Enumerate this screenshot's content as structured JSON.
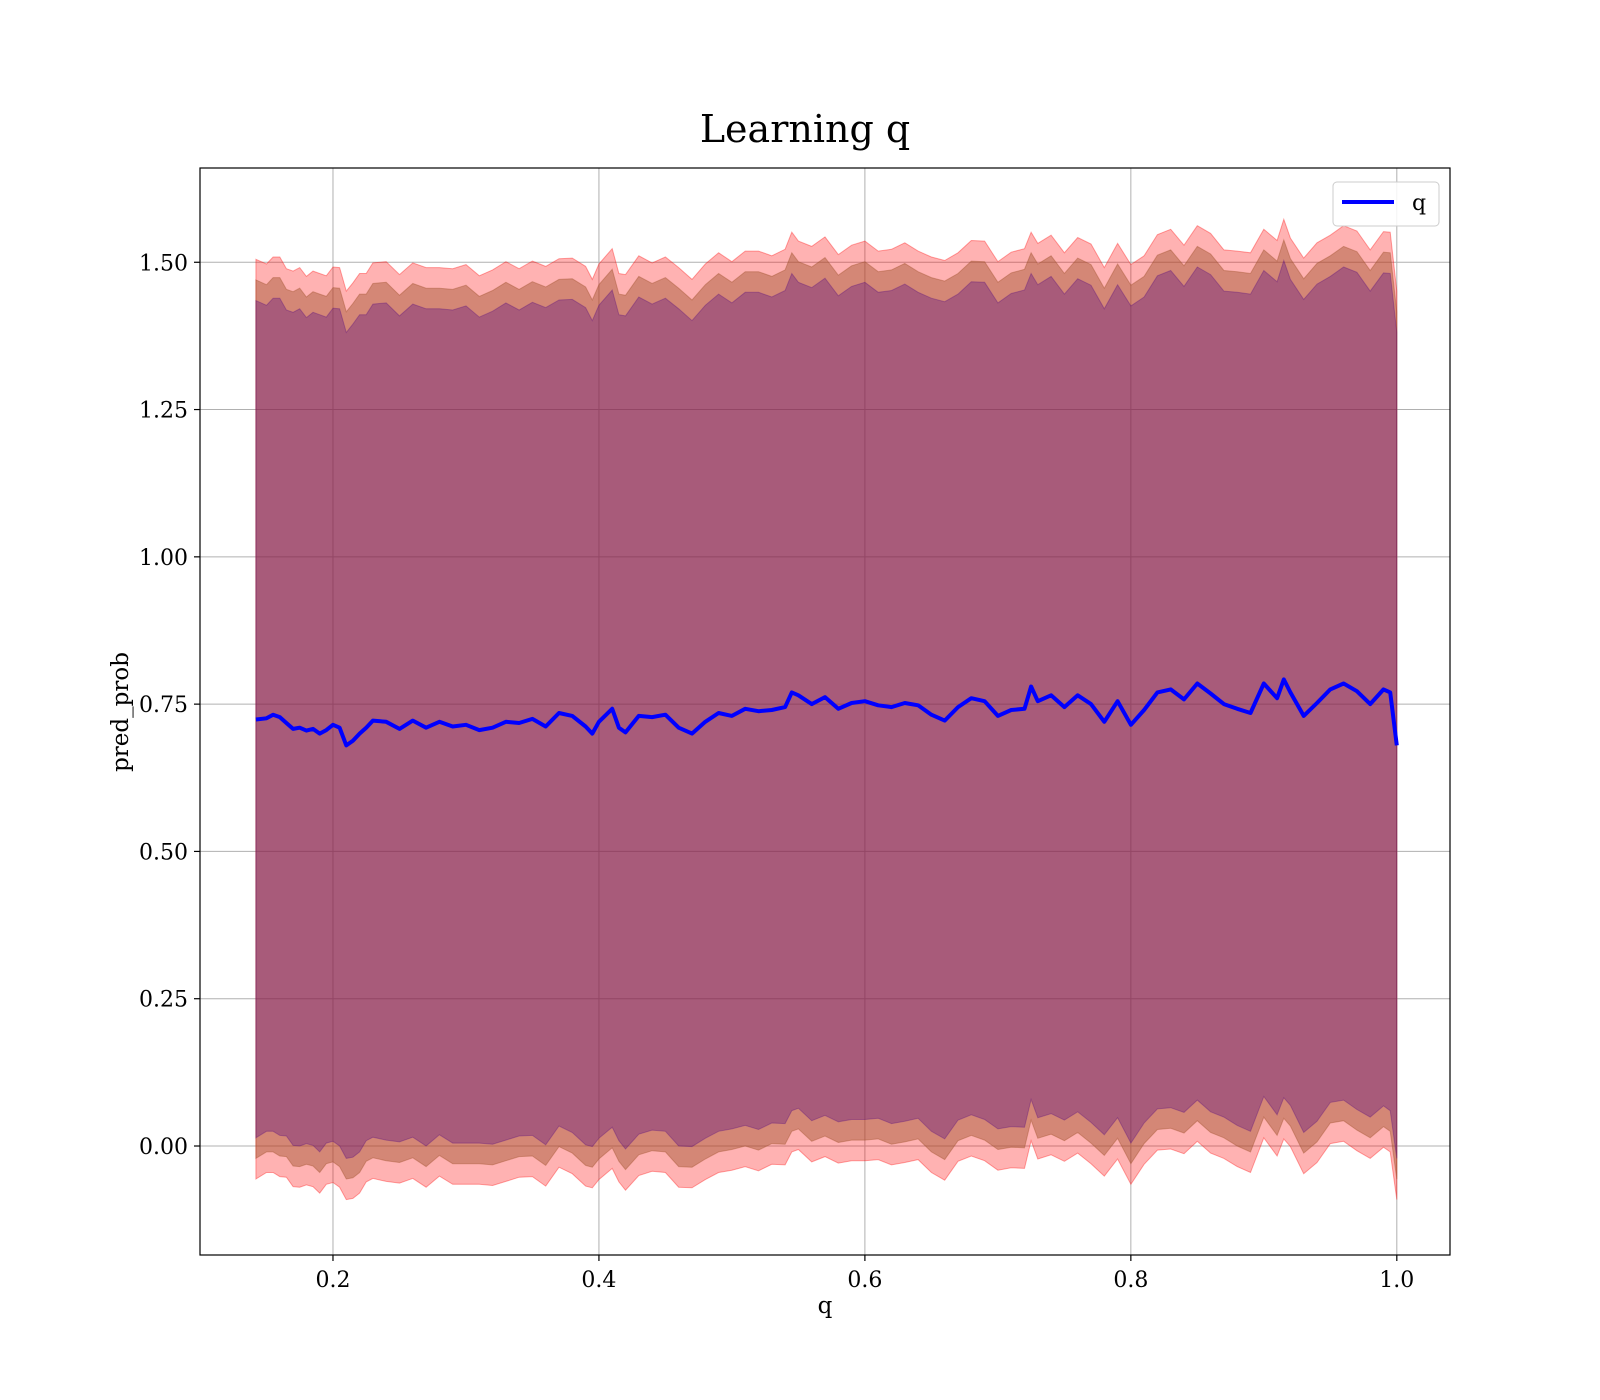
{
  "chart_data": {
    "type": "line",
    "title": "Learning q",
    "xlabel": "q",
    "ylabel": "pred_prob",
    "xlim": [
      0.1,
      1.04
    ],
    "ylim": [
      -0.185,
      1.66
    ],
    "xticks": [
      0.2,
      0.4,
      0.6,
      0.8,
      1.0
    ],
    "xtick_labels": [
      "0.2",
      "0.4",
      "0.6",
      "0.8",
      "1.0"
    ],
    "yticks": [
      0.0,
      0.25,
      0.5,
      0.75,
      1.0,
      1.25,
      1.5
    ],
    "ytick_labels": [
      "0.00",
      "0.25",
      "0.50",
      "0.75",
      "1.00",
      "1.25",
      "1.50"
    ],
    "grid": true,
    "legend_position": "top-right",
    "colors": {
      "line": "#0000ff",
      "band_outer": "#ff0000",
      "band_mid": "#a0522d",
      "band_inner": "#4b0082",
      "grid": "#b0b0b0"
    },
    "series": [
      {
        "name": "q",
        "x": [
          0.142,
          0.15,
          0.155,
          0.16,
          0.165,
          0.17,
          0.175,
          0.18,
          0.185,
          0.19,
          0.195,
          0.2,
          0.205,
          0.21,
          0.215,
          0.22,
          0.225,
          0.23,
          0.24,
          0.25,
          0.26,
          0.27,
          0.28,
          0.29,
          0.3,
          0.31,
          0.32,
          0.33,
          0.34,
          0.35,
          0.36,
          0.37,
          0.38,
          0.39,
          0.395,
          0.4,
          0.41,
          0.415,
          0.42,
          0.43,
          0.44,
          0.45,
          0.46,
          0.47,
          0.48,
          0.49,
          0.5,
          0.51,
          0.52,
          0.53,
          0.54,
          0.545,
          0.55,
          0.56,
          0.57,
          0.58,
          0.59,
          0.6,
          0.61,
          0.62,
          0.63,
          0.64,
          0.65,
          0.66,
          0.67,
          0.68,
          0.69,
          0.7,
          0.71,
          0.72,
          0.725,
          0.73,
          0.74,
          0.75,
          0.76,
          0.77,
          0.78,
          0.79,
          0.8,
          0.81,
          0.82,
          0.83,
          0.84,
          0.85,
          0.86,
          0.87,
          0.88,
          0.89,
          0.9,
          0.91,
          0.915,
          0.92,
          0.93,
          0.94,
          0.95,
          0.96,
          0.97,
          0.98,
          0.99,
          0.995,
          1.0
        ],
        "values": [
          0.724,
          0.726,
          0.732,
          0.728,
          0.718,
          0.708,
          0.71,
          0.705,
          0.708,
          0.7,
          0.706,
          0.715,
          0.71,
          0.68,
          0.688,
          0.7,
          0.71,
          0.722,
          0.72,
          0.708,
          0.722,
          0.71,
          0.72,
          0.712,
          0.715,
          0.706,
          0.71,
          0.72,
          0.718,
          0.725,
          0.712,
          0.735,
          0.73,
          0.712,
          0.7,
          0.72,
          0.742,
          0.71,
          0.702,
          0.73,
          0.728,
          0.732,
          0.71,
          0.7,
          0.72,
          0.735,
          0.73,
          0.742,
          0.738,
          0.74,
          0.745,
          0.77,
          0.765,
          0.75,
          0.762,
          0.742,
          0.752,
          0.755,
          0.748,
          0.745,
          0.752,
          0.748,
          0.732,
          0.722,
          0.745,
          0.76,
          0.755,
          0.73,
          0.74,
          0.742,
          0.78,
          0.755,
          0.765,
          0.745,
          0.765,
          0.75,
          0.72,
          0.755,
          0.715,
          0.74,
          0.77,
          0.775,
          0.758,
          0.785,
          0.768,
          0.75,
          0.742,
          0.735,
          0.785,
          0.76,
          0.792,
          0.77,
          0.73,
          0.752,
          0.775,
          0.785,
          0.772,
          0.75,
          0.775,
          0.77,
          0.68
        ]
      }
    ],
    "bands": {
      "outer_upper_offset": 0.775,
      "outer_lower_offset": -0.775,
      "mid_upper_offset": 0.74,
      "mid_lower_offset": -0.74,
      "inner_upper_offset": 0.705,
      "inner_lower_offset": -0.705
    }
  }
}
